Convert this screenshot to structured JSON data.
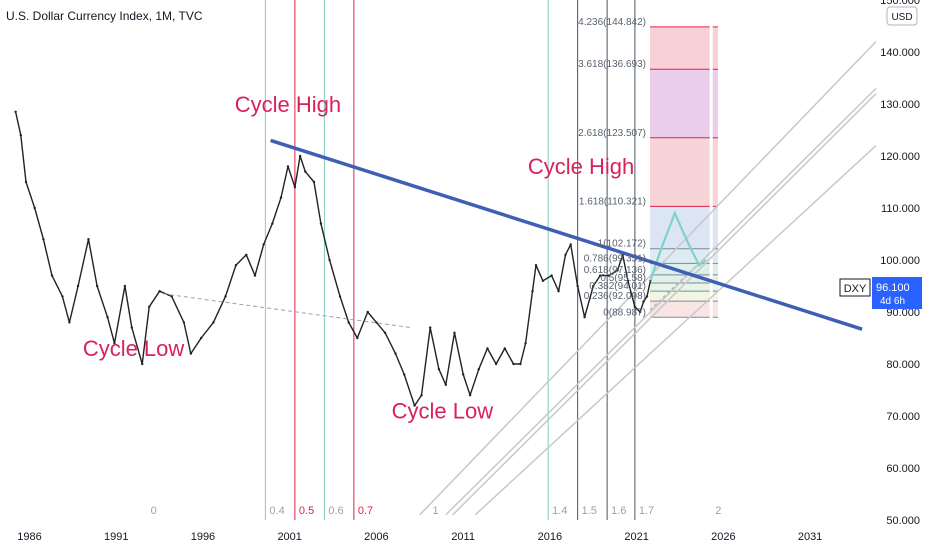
{
  "header": {
    "title": "U.S. Dollar Currency Index, 1M, TVC",
    "currency": "USD"
  },
  "price_tag": {
    "symbol": "DXY",
    "price": "96.100",
    "countdown": "4d 6h",
    "color": "#2962ff"
  },
  "chart_data": {
    "type": "line",
    "title": "U.S. Dollar Currency Index, 1M, TVC",
    "xlabel": "",
    "ylabel": "",
    "x_ticks": [
      "1986",
      "1991",
      "1996",
      "2001",
      "2006",
      "2011",
      "2016",
      "2021",
      "2026",
      "2031"
    ],
    "y_ticks": [
      "50.000",
      "60.000",
      "70.000",
      "80.000",
      "90.000",
      "100.000",
      "110.000",
      "120.000",
      "130.000",
      "140.000",
      "150.000"
    ],
    "xlim": [
      1984.3,
      2034.8
    ],
    "ylim": [
      50,
      150
    ],
    "series": [
      {
        "values": [
          {
            "x": 1985.2,
            "y": 128.5
          },
          {
            "x": 1985.5,
            "y": 124
          },
          {
            "x": 1985.8,
            "y": 115
          },
          {
            "x": 1986.3,
            "y": 110
          },
          {
            "x": 1986.8,
            "y": 104
          },
          {
            "x": 1987.3,
            "y": 97
          },
          {
            "x": 1987.9,
            "y": 93
          },
          {
            "x": 1988.3,
            "y": 88
          },
          {
            "x": 1988.8,
            "y": 95
          },
          {
            "x": 1989.4,
            "y": 104
          },
          {
            "x": 1989.9,
            "y": 95
          },
          {
            "x": 1990.5,
            "y": 89
          },
          {
            "x": 1990.9,
            "y": 84
          },
          {
            "x": 1991.5,
            "y": 95
          },
          {
            "x": 1991.9,
            "y": 87
          },
          {
            "x": 1992.5,
            "y": 80
          },
          {
            "x": 1992.9,
            "y": 91
          },
          {
            "x": 1993.5,
            "y": 94
          },
          {
            "x": 1994.2,
            "y": 93
          },
          {
            "x": 1994.9,
            "y": 88
          },
          {
            "x": 1995.3,
            "y": 82
          },
          {
            "x": 1995.9,
            "y": 85
          },
          {
            "x": 1996.6,
            "y": 88
          },
          {
            "x": 1997.3,
            "y": 93
          },
          {
            "x": 1997.9,
            "y": 99
          },
          {
            "x": 1998.5,
            "y": 101
          },
          {
            "x": 1999.0,
            "y": 97
          },
          {
            "x": 1999.5,
            "y": 103
          },
          {
            "x": 2000.0,
            "y": 107
          },
          {
            "x": 2000.5,
            "y": 112
          },
          {
            "x": 2000.9,
            "y": 118
          },
          {
            "x": 2001.3,
            "y": 114
          },
          {
            "x": 2001.6,
            "y": 120
          },
          {
            "x": 2001.9,
            "y": 117
          },
          {
            "x": 2002.4,
            "y": 115
          },
          {
            "x": 2002.8,
            "y": 107
          },
          {
            "x": 2003.3,
            "y": 100
          },
          {
            "x": 2003.9,
            "y": 93
          },
          {
            "x": 2004.4,
            "y": 88
          },
          {
            "x": 2004.9,
            "y": 85
          },
          {
            "x": 2005.5,
            "y": 90
          },
          {
            "x": 2006.0,
            "y": 88
          },
          {
            "x": 2006.5,
            "y": 86
          },
          {
            "x": 2007.1,
            "y": 82
          },
          {
            "x": 2007.6,
            "y": 78
          },
          {
            "x": 2008.2,
            "y": 72
          },
          {
            "x": 2008.6,
            "y": 74
          },
          {
            "x": 2009.1,
            "y": 87
          },
          {
            "x": 2009.6,
            "y": 79
          },
          {
            "x": 2010.0,
            "y": 76
          },
          {
            "x": 2010.5,
            "y": 86
          },
          {
            "x": 2011.0,
            "y": 78
          },
          {
            "x": 2011.4,
            "y": 74
          },
          {
            "x": 2011.9,
            "y": 79
          },
          {
            "x": 2012.4,
            "y": 83
          },
          {
            "x": 2012.9,
            "y": 80
          },
          {
            "x": 2013.4,
            "y": 83
          },
          {
            "x": 2013.9,
            "y": 80
          },
          {
            "x": 2014.3,
            "y": 80
          },
          {
            "x": 2014.6,
            "y": 84
          },
          {
            "x": 2015.0,
            "y": 94
          },
          {
            "x": 2015.2,
            "y": 99
          },
          {
            "x": 2015.6,
            "y": 96
          },
          {
            "x": 2016.1,
            "y": 97
          },
          {
            "x": 2016.5,
            "y": 94
          },
          {
            "x": 2016.9,
            "y": 101
          },
          {
            "x": 2017.2,
            "y": 103
          },
          {
            "x": 2017.6,
            "y": 95
          },
          {
            "x": 2018.0,
            "y": 89
          },
          {
            "x": 2018.5,
            "y": 95
          },
          {
            "x": 2018.9,
            "y": 97
          },
          {
            "x": 2019.4,
            "y": 97
          },
          {
            "x": 2019.9,
            "y": 98
          },
          {
            "x": 2020.2,
            "y": 101
          },
          {
            "x": 2020.5,
            "y": 96
          },
          {
            "x": 2020.9,
            "y": 91
          },
          {
            "x": 2021.2,
            "y": 90
          },
          {
            "x": 2021.4,
            "y": 92
          },
          {
            "x": 2021.6,
            "y": 93
          },
          {
            "x": 2021.8,
            "y": 96.1
          }
        ]
      }
    ],
    "annotations": [
      {
        "text": "Cycle High",
        "x": 2000.9,
        "y": 128.5
      },
      {
        "text": "Cycle High",
        "x": 2017.8,
        "y": 116.5
      },
      {
        "text": "Cycle Low",
        "x": 1992.0,
        "y": 81.5
      },
      {
        "text": "Cycle Low",
        "x": 2009.8,
        "y": 69.5
      }
    ],
    "time_cycles": [
      {
        "label": "0",
        "x": 1992.75
      },
      {
        "label": "0.4",
        "x": 1999.6
      },
      {
        "label": "0.5",
        "x": 2001.3
      },
      {
        "label": "0.6",
        "x": 2003.0
      },
      {
        "label": "0.7",
        "x": 2004.7
      },
      {
        "label": "1",
        "x": 2009.0
      },
      {
        "label": "1.4",
        "x": 2015.9
      },
      {
        "label": "1.5",
        "x": 2017.6
      },
      {
        "label": "1.6",
        "x": 2019.3
      },
      {
        "label": "1.7",
        "x": 2020.9
      },
      {
        "label": "2",
        "x": 2025.3
      }
    ],
    "fib_extension": {
      "levels": [
        {
          "label": "4.236(144.842)",
          "value": 144.842,
          "fill": "#f7c9d1"
        },
        {
          "label": "3.618(136.693)",
          "value": 136.693,
          "fill": "#e7c6ea"
        },
        {
          "label": "2.618(123.507)",
          "value": 123.507,
          "fill": "#f6cdd0"
        },
        {
          "label": "1.618(110.321)",
          "value": 110.321,
          "fill": "#d5e0f2"
        },
        {
          "label": "1(102.172)",
          "value": 102.172,
          "fill": "#d9e8f0"
        },
        {
          "label": "0.786(99.351)",
          "value": 99.351,
          "fill": "#d6ece8"
        },
        {
          "label": "0.618(97.136)",
          "value": 97.136,
          "fill": "#dcefe2"
        },
        {
          "label": "0.5(95.58)",
          "value": 95.58,
          "fill": "#e3f3e6"
        },
        {
          "label": "0.382(94.01)",
          "value": 94.01,
          "fill": "#eef3dc"
        },
        {
          "label": "0.236(92.098)",
          "value": 92.098,
          "fill": "#f9dfdf"
        },
        {
          "label": "0(88.987)",
          "value": 88.987,
          "fill": "#f9dfdf"
        }
      ]
    },
    "trendline": {
      "from": {
        "x": 1999.9,
        "y": 123.0
      },
      "to": {
        "x": 2034.0,
        "y": 86.7
      }
    },
    "gray_trendline": {
      "from": {
        "x": 1993.7,
        "y": 93.5
      },
      "to": {
        "x": 2008.0,
        "y": 87.0
      }
    },
    "channel_lines": [
      {
        "from": {
          "x": 2008.5,
          "y": 51
        },
        "to": {
          "x": 2034.8,
          "y": 142
        }
      },
      {
        "from": {
          "x": 2010.0,
          "y": 51
        },
        "to": {
          "x": 2034.8,
          "y": 133
        }
      },
      {
        "from": {
          "x": 2010.4,
          "y": 51
        },
        "to": {
          "x": 2034.8,
          "y": 132
        }
      },
      {
        "from": {
          "x": 2011.7,
          "y": 51
        },
        "to": {
          "x": 2034.8,
          "y": 122
        }
      }
    ],
    "projection": [
      {
        "x": 2021.8,
        "y": 96.1
      },
      {
        "x": 2022.4,
        "y": 102
      },
      {
        "x": 2023.2,
        "y": 109
      },
      {
        "x": 2024.0,
        "y": 103
      },
      {
        "x": 2024.6,
        "y": 99
      },
      {
        "x": 2025.0,
        "y": 100
      }
    ],
    "colors": {
      "series": "#222222",
      "trendline": "#3f5fb4",
      "annotation": "#d8225a",
      "cycle_line": "#7fcfc0",
      "cycle_line_alt": "#e0214a",
      "cycle_line_main": "#ffffff",
      "channel": "#c8c8c8",
      "projection": "#7fd1cc"
    }
  }
}
